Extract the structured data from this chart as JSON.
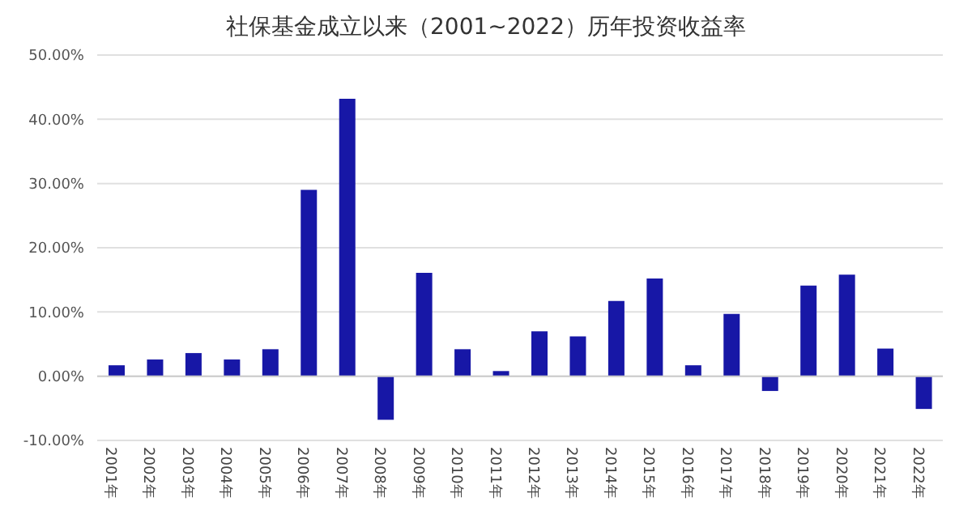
{
  "chart_data": {
    "type": "bar",
    "title": "社保基金成立以来（2001~2022）历年投资收益率",
    "categories": [
      "2001年",
      "2002年",
      "2003年",
      "2004年",
      "2005年",
      "2006年",
      "2007年",
      "2008年",
      "2009年",
      "2010年",
      "2011年",
      "2012年",
      "2013年",
      "2014年",
      "2015年",
      "2016年",
      "2017年",
      "2018年",
      "2019年",
      "2020年",
      "2021年",
      "2022年"
    ],
    "values": [
      1.7,
      2.6,
      3.6,
      2.6,
      4.2,
      29.0,
      43.2,
      -6.8,
      16.1,
      4.2,
      0.8,
      7.0,
      6.2,
      11.7,
      15.2,
      1.7,
      9.7,
      -2.3,
      14.1,
      15.8,
      4.3,
      -5.1
    ],
    "color": "#1717a6",
    "ylim": [
      -10,
      50
    ],
    "yticks": [
      {
        "value": -10,
        "label": "-10.00%"
      },
      {
        "value": 0,
        "label": "0.00%"
      },
      {
        "value": 10,
        "label": "10.00%"
      },
      {
        "value": 20,
        "label": "20.00%"
      },
      {
        "value": 30,
        "label": "30.00%"
      },
      {
        "value": 40,
        "label": "40.00%"
      },
      {
        "value": 50,
        "label": "50.00%"
      }
    ],
    "grid": "y"
  }
}
